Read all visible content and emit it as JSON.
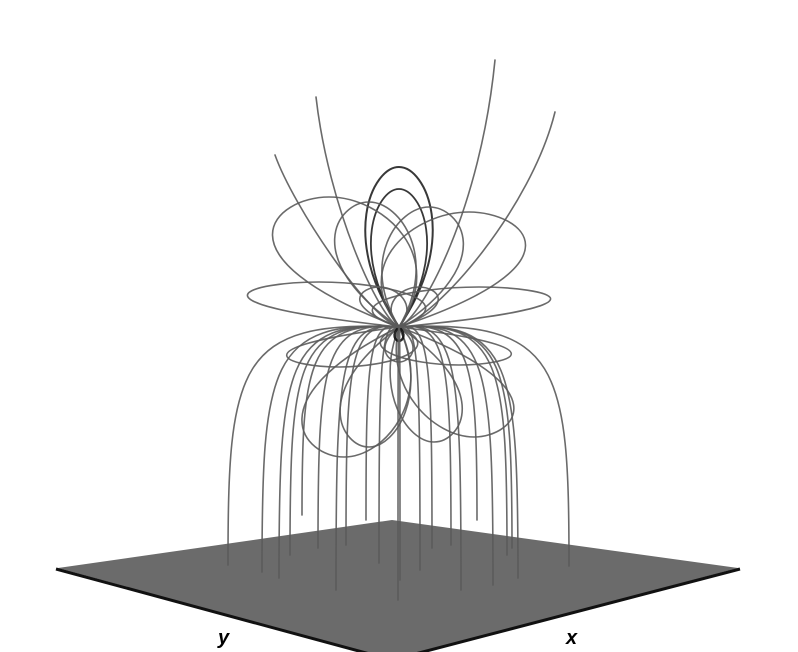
{
  "diagram": {
    "axes": {
      "x_label": "x",
      "y_label": "y"
    },
    "colors": {
      "background": "#ffffff",
      "plane_fill": "#6b6b6b",
      "plane_edge": "#111111",
      "field_line": "#5a5a5a",
      "field_line_dark": "#222222"
    }
  }
}
